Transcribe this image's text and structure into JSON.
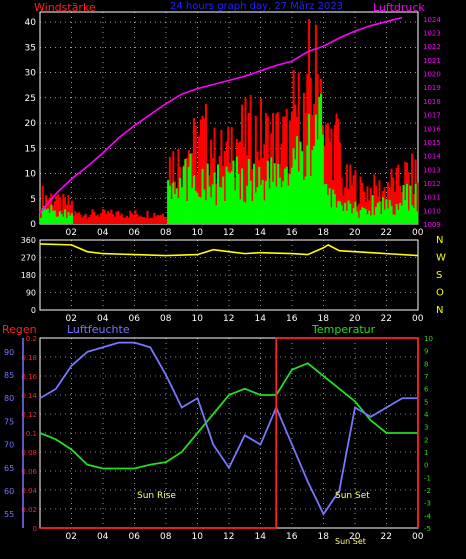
{
  "colors": {
    "wind": "#ff0000",
    "gust": "#00ff00",
    "pressure": "#ff00ff",
    "direction": "#ffff00",
    "humidity": "#7777ff",
    "temperature": "#22dd22",
    "rain": "#ff2222",
    "grid": "#ffffff",
    "frame": "#ffffff",
    "title": "#2222ff"
  },
  "header": {
    "left": "Windstärke",
    "center": "24 hours graph day, 27 März 2023",
    "right": "Luftdruck"
  },
  "x_ticks": [
    "02",
    "04",
    "06",
    "08",
    "10",
    "12",
    "14",
    "16",
    "18",
    "20",
    "22",
    "00"
  ],
  "direction_labels": [
    "N",
    "W",
    "S",
    "O",
    "N"
  ],
  "bottom_labels": {
    "rain": "Regen",
    "humidity": "Luftfeuchte",
    "temperature": "Temperatur",
    "sunrise": "Sun Rise",
    "sunset": "Sun Set",
    "sunset_dup": "Sun Set"
  },
  "chart_data": [
    {
      "type": "bar",
      "left_axis": {
        "ylim": [
          0,
          42
        ],
        "ticks": [
          0,
          5,
          10,
          15,
          20,
          25,
          30,
          35,
          40
        ]
      },
      "right_axis": {
        "ylim": [
          1009,
          1024.5
        ],
        "ticks": [
          1009,
          1010,
          1011,
          1012,
          1013,
          1014,
          1015,
          1016,
          1017,
          1018,
          1019,
          1020,
          1021,
          1022,
          1023,
          1024
        ]
      },
      "x_hours": [
        1,
        2,
        3,
        4,
        5,
        6,
        7,
        8,
        9,
        10,
        11,
        12,
        13,
        14,
        15,
        16,
        17,
        18,
        19,
        20,
        21,
        22,
        23,
        24
      ],
      "series": [
        {
          "key": "wind",
          "values": [
            8,
            6,
            3,
            3,
            3,
            3,
            3,
            3,
            18,
            22,
            25,
            20,
            25,
            26,
            25,
            25,
            32,
            42,
            24,
            12,
            10,
            10,
            12,
            14
          ]
        },
        {
          "key": "gust",
          "values": [
            4,
            3,
            0,
            0,
            0,
            0,
            0,
            0,
            10,
            14,
            14,
            12,
            14,
            14,
            14,
            15,
            18,
            30,
            8,
            5,
            4,
            6,
            6,
            8
          ]
        },
        {
          "key": "pressure",
          "values": [
            1009.8,
            1011.2,
            1012.3,
            1013.2,
            1014.2,
            1015.3,
            1016.2,
            1017.0,
            1017.8,
            1018.5,
            1018.9,
            1019.2,
            1019.5,
            1019.8,
            1020.2,
            1020.6,
            1020.9,
            1021.6,
            1022.0,
            1022.6,
            1023.1,
            1023.5,
            1023.8,
            1024.1
          ]
        }
      ]
    },
    {
      "type": "line",
      "ylim": [
        0,
        360
      ],
      "ticks": [
        0,
        90,
        180,
        270,
        360
      ],
      "series": [
        {
          "key": "direction",
          "x": [
            0,
            2,
            3,
            4,
            6,
            8,
            10,
            11,
            12,
            13,
            14,
            16,
            17,
            18,
            18.3,
            19,
            20,
            22,
            24
          ],
          "values": [
            340,
            335,
            300,
            290,
            285,
            280,
            285,
            310,
            300,
            290,
            295,
            290,
            285,
            320,
            335,
            305,
            300,
            290,
            280
          ]
        }
      ]
    },
    {
      "type": "line",
      "axes": {
        "rain": {
          "ylim": [
            0,
            0.2
          ],
          "ticks": [
            0,
            0.02,
            0.04,
            0.06,
            0.08,
            0.1,
            0.12,
            0.14,
            0.16,
            0.18,
            0.2
          ]
        },
        "humidity": {
          "ylim": [
            52,
            93
          ],
          "ticks": [
            55,
            60,
            65,
            70,
            75,
            80,
            85,
            90
          ]
        },
        "temperature": {
          "ylim": [
            -5,
            10
          ],
          "ticks": [
            -5,
            -4,
            -3,
            -2,
            -1,
            0,
            1,
            2,
            3,
            4,
            5,
            6,
            7,
            8,
            9,
            10
          ]
        }
      },
      "series": [
        {
          "key": "temperature",
          "x": [
            0,
            1,
            2,
            3,
            4,
            5,
            6,
            7,
            8,
            9,
            10,
            11,
            12,
            13,
            14,
            15,
            16,
            17,
            18,
            19,
            20,
            21,
            22,
            23,
            24
          ],
          "values": [
            2.5,
            2,
            1.2,
            0,
            -0.3,
            -0.3,
            -0.3,
            0,
            0.2,
            1,
            2.5,
            4,
            5.5,
            6,
            5.5,
            5.5,
            7.5,
            8,
            7,
            6,
            5,
            3.5,
            2.5,
            2.5,
            2.5
          ]
        },
        {
          "key": "humidity",
          "x": [
            0,
            1,
            2,
            3,
            4,
            5,
            6,
            7,
            8,
            9,
            10,
            11,
            12,
            13,
            14,
            15,
            16,
            17,
            18,
            19,
            20,
            21,
            22,
            23,
            24
          ],
          "values": [
            80,
            82,
            87,
            90,
            91,
            92,
            92,
            91,
            85,
            78,
            80,
            70,
            65,
            72,
            70,
            78,
            70,
            62,
            55,
            60,
            78,
            76,
            78,
            80,
            80
          ]
        },
        {
          "key": "rain",
          "x": [
            0,
            15,
            15,
            24,
            24
          ],
          "values": [
            0,
            0,
            0.2,
            0.2,
            0
          ]
        }
      ]
    }
  ]
}
